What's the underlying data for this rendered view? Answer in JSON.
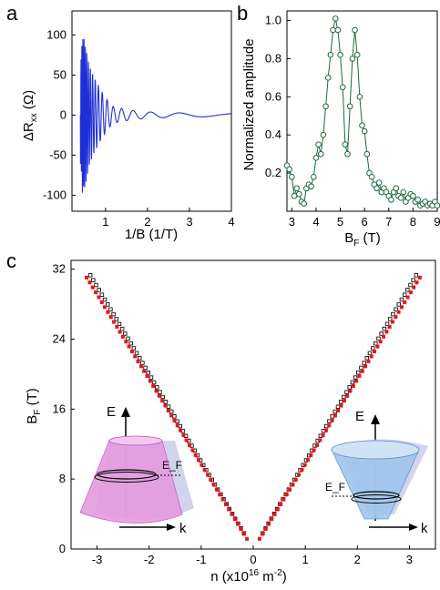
{
  "panels": {
    "a": "a",
    "b": "b",
    "c": "c"
  },
  "chart_data": [
    {
      "id": "a",
      "type": "line",
      "xlabel": "1/B (1/T)",
      "ylabel": "ΔR_xx (Ω)",
      "ylabel_parts": {
        "main": "ΔR",
        "sub": "xx",
        "unit": " (Ω)"
      },
      "xlim": [
        0.2,
        4.0
      ],
      "ylim": [
        -120,
        130
      ],
      "xticks": [
        1,
        2,
        3,
        4
      ],
      "xtick_labels": [
        "1",
        "2",
        "3",
        "4"
      ],
      "yticks": [
        -100,
        -50,
        0,
        50,
        100
      ],
      "ytick_labels": [
        "-100",
        "-50",
        "0",
        "50",
        "100"
      ],
      "line_color": "#1f2fd6",
      "model": "oscillation",
      "series": [
        {
          "x": [
            0.4,
            0.45,
            0.5,
            0.55,
            0.6,
            0.7,
            0.8,
            0.9,
            1.0,
            1.1,
            1.2,
            1.4,
            1.6,
            1.8,
            2.0,
            2.5,
            3.0,
            3.5,
            4.0
          ],
          "envelope": [
            60,
            100,
            93,
            80,
            65,
            50,
            40,
            30,
            22,
            15,
            10,
            8,
            6,
            5,
            4,
            3,
            2.5,
            2,
            2
          ]
        }
      ]
    },
    {
      "id": "b",
      "type": "line",
      "xlabel": "B_F (T)",
      "xlabel_parts": {
        "main": "B",
        "sub": "F",
        "unit": " (T)"
      },
      "ylabel": "Normalized amplitude",
      "xlim": [
        2.8,
        9.0
      ],
      "ylim": [
        0.0,
        1.05
      ],
      "xticks": [
        3,
        4,
        5,
        6,
        7,
        8,
        9
      ],
      "xtick_labels": [
        "3",
        "4",
        "5",
        "6",
        "7",
        "8",
        "9"
      ],
      "yticks": [
        0.2,
        0.4,
        0.6,
        0.8,
        1.0
      ],
      "ytick_labels": [
        "0.2",
        "0.4",
        "0.6",
        "0.8",
        "1.0"
      ],
      "line_color": "#1a6b3c",
      "marker": "open-circle",
      "series": [
        {
          "x": [
            2.8,
            2.9,
            3.0,
            3.1,
            3.2,
            3.3,
            3.4,
            3.5,
            3.6,
            3.7,
            3.8,
            3.9,
            4.0,
            4.1,
            4.2,
            4.3,
            4.4,
            4.5,
            4.6,
            4.7,
            4.8,
            4.9,
            5.0,
            5.1,
            5.2,
            5.3,
            5.4,
            5.5,
            5.6,
            5.7,
            5.8,
            5.9,
            6.0,
            6.1,
            6.2,
            6.3,
            6.4,
            6.5,
            6.6,
            6.7,
            6.8,
            6.9,
            7.0,
            7.1,
            7.2,
            7.3,
            7.4,
            7.5,
            7.6,
            7.7,
            7.8,
            7.9,
            8.0,
            8.1,
            8.2,
            8.3,
            8.4,
            8.5,
            8.6,
            8.7,
            8.8,
            8.9,
            9.0
          ],
          "y": [
            0.24,
            0.22,
            0.18,
            0.08,
            0.12,
            0.09,
            0.05,
            0.04,
            0.12,
            0.14,
            0.13,
            0.18,
            0.28,
            0.35,
            0.3,
            0.4,
            0.55,
            0.7,
            0.82,
            0.95,
            1.01,
            0.95,
            0.82,
            0.65,
            0.35,
            0.3,
            0.55,
            0.8,
            0.95,
            0.82,
            0.6,
            0.45,
            0.42,
            0.3,
            0.2,
            0.18,
            0.14,
            0.12,
            0.15,
            0.1,
            0.12,
            0.1,
            0.08,
            0.06,
            0.1,
            0.12,
            0.08,
            0.07,
            0.1,
            0.05,
            0.07,
            0.09,
            0.08,
            0.05,
            0.06,
            0.03,
            0.04,
            0.05,
            0.03,
            0.04,
            0.03,
            0.05,
            0.03
          ]
        }
      ]
    },
    {
      "id": "c",
      "type": "scatter",
      "xlabel": "n (x10¹⁶ m⁻²)",
      "xlabel_parts": {
        "main": "n (x10",
        "sup1": "16",
        "mid": " m",
        "sup2": "-2",
        "end": ")"
      },
      "ylabel": "B_F (T)",
      "ylabel_parts": {
        "main": "B",
        "sub": "F",
        "unit": " (T)"
      },
      "xlim": [
        -3.5,
        3.5
      ],
      "ylim": [
        0,
        33
      ],
      "xticks": [
        -3,
        -2,
        -1,
        0,
        1,
        2,
        3
      ],
      "xtick_labels": [
        "-3",
        "-2",
        "-1",
        "0",
        "1",
        "2",
        "3"
      ],
      "yticks": [
        0,
        8,
        16,
        24,
        32
      ],
      "ytick_labels": [
        "0",
        "8",
        "16",
        "24",
        "32"
      ],
      "series": [
        {
          "name": "",
          "color": "#111111",
          "marker": "open-square",
          "slope": 10.0,
          "x_from": 0.18,
          "x_to": 3.13,
          "count": 54
        },
        {
          "name": "",
          "color": "#e8151b",
          "marker": "filled-square",
          "slope": 9.7,
          "x_from": 0.12,
          "x_to": 3.2,
          "count": 54
        }
      ],
      "insets": [
        {
          "id": "hole-cone",
          "energy_label": "E",
          "k_label": "k",
          "fermi_label": "E_F",
          "fill": "#e59be0",
          "edge": "#c054c0"
        },
        {
          "id": "electron-cone",
          "energy_label": "E",
          "k_label": "k",
          "fermi_label": "E_F",
          "fill": "#9fc6ec",
          "edge": "#5c8fc7"
        }
      ]
    }
  ]
}
